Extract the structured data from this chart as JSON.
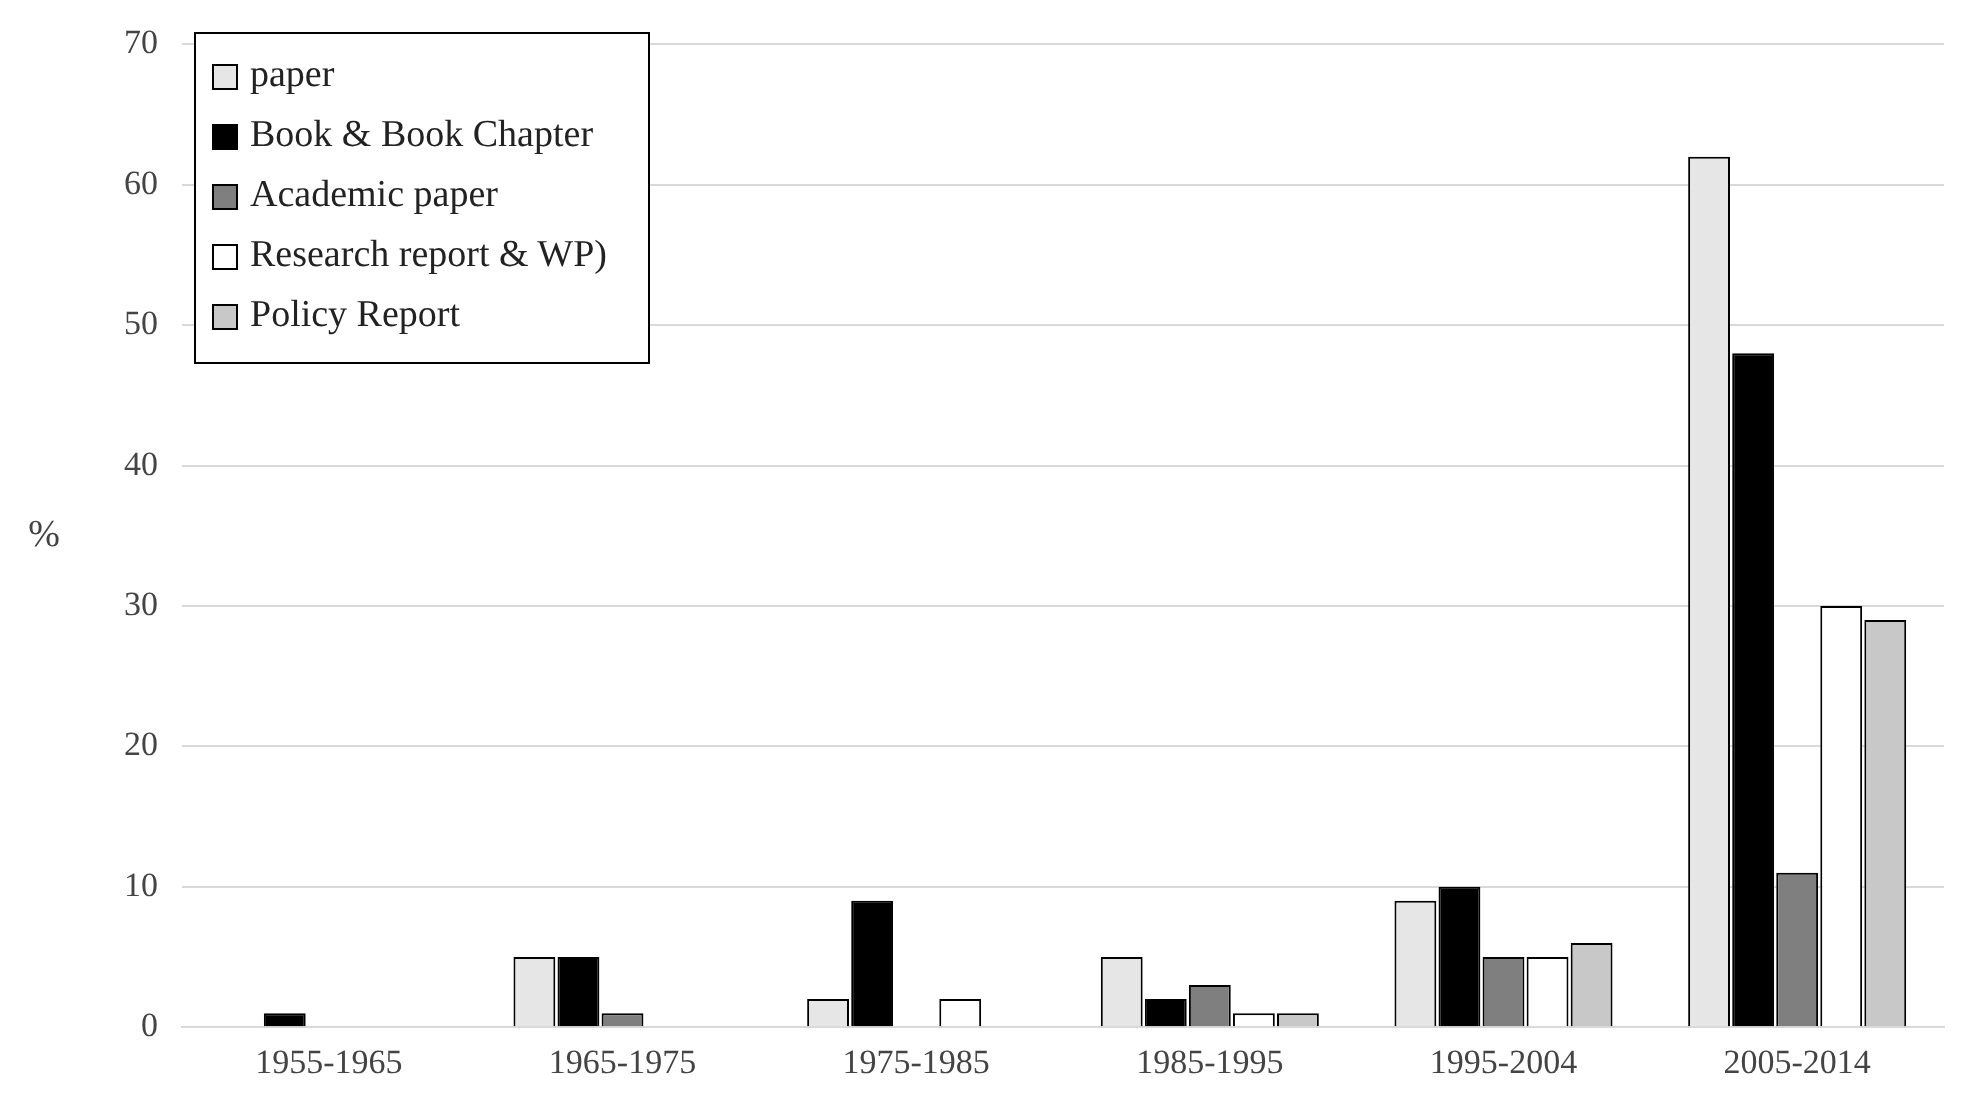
{
  "chart_data": {
    "type": "bar",
    "ylabel": "%",
    "categories": [
      "1955-1965",
      "1965-1975",
      "1975-1985",
      "1985-1995",
      "1995-2004",
      "2005-2014"
    ],
    "series": [
      {
        "name": "paper",
        "color": "#e6e6e6",
        "values": [
          0,
          5,
          2,
          5,
          9,
          62
        ]
      },
      {
        "name": "Book & Book Chapter",
        "color": "#000000",
        "values": [
          1,
          5,
          9,
          2,
          10,
          48
        ]
      },
      {
        "name": "Academic paper",
        "color": "#7f7f7f",
        "values": [
          0,
          1,
          0,
          3,
          5,
          11
        ]
      },
      {
        "name": "Research report & WP)",
        "color": "#ffffff",
        "values": [
          0,
          0,
          2,
          1,
          5,
          30
        ]
      },
      {
        "name": "Policy Report",
        "color": "#c8c8c8",
        "values": [
          0,
          0,
          0,
          1,
          6,
          29
        ]
      }
    ],
    "ylim": [
      0,
      70
    ],
    "yticks": [
      0,
      10,
      20,
      30,
      40,
      50,
      60,
      70
    ],
    "grid": "y",
    "legend": "top left"
  }
}
